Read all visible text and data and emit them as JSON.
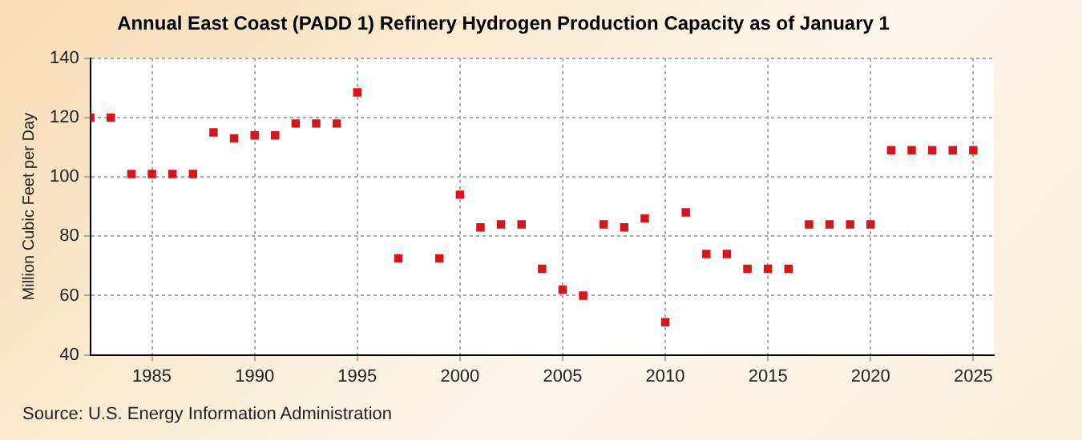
{
  "chart_data": {
    "type": "scatter",
    "title": "Annual East Coast (PADD 1) Refinery Hydrogen Production Capacity as of January 1",
    "ylabel": "Million Cubic Feet per Day",
    "annotations": [
      "Source: U.S. Energy Information Administration"
    ],
    "x": [
      1982,
      1983,
      1984,
      1985,
      1986,
      1987,
      1988,
      1989,
      1990,
      1991,
      1992,
      1993,
      1994,
      1995,
      1997,
      1999,
      2000,
      2001,
      2002,
      2003,
      2004,
      2005,
      2006,
      2007,
      2008,
      2009,
      2010,
      2011,
      2012,
      2013,
      2014,
      2015,
      2016,
      2017,
      2018,
      2019,
      2020,
      2021,
      2022,
      2023,
      2024,
      2025
    ],
    "series": [
      {
        "color": "#d7151c",
        "values": [
          120,
          120,
          101,
          101,
          101,
          101,
          115,
          113,
          114,
          114,
          118,
          118,
          118,
          128.5,
          72.5,
          72.5,
          94,
          83,
          84,
          84,
          69,
          62,
          60,
          84,
          83,
          86,
          51,
          88,
          74,
          74,
          69,
          69,
          69,
          84,
          84,
          84,
          84,
          109,
          109,
          109,
          109,
          109
        ]
      }
    ],
    "xlim": [
      1982,
      2026
    ],
    "xticks": [
      1985,
      1990,
      1995,
      2000,
      2005,
      2010,
      2015,
      2020,
      2025
    ],
    "ylim": [
      40,
      140
    ],
    "yticks": [
      40,
      60,
      80,
      100,
      120,
      140
    ],
    "grid": true,
    "legend": false,
    "marker": "square"
  }
}
